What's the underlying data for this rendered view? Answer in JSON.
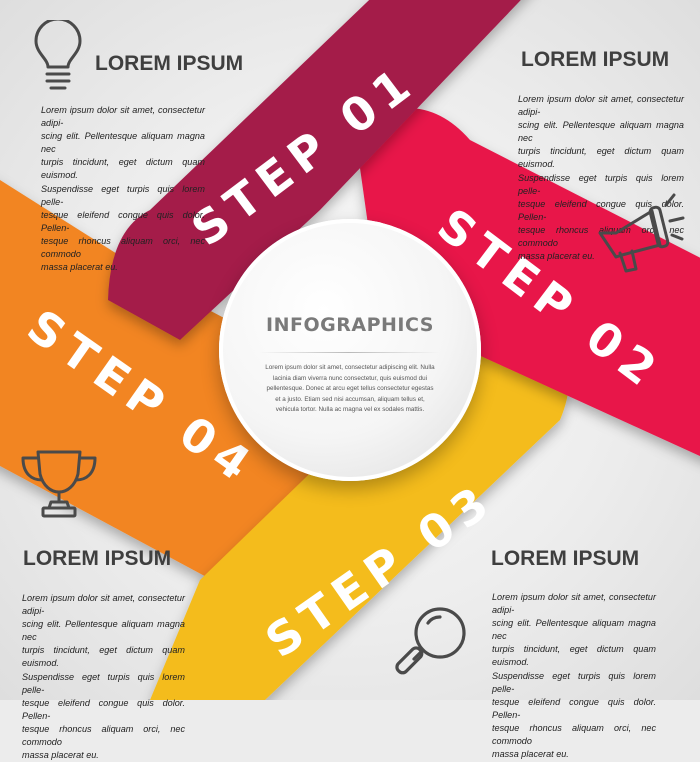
{
  "colors": {
    "step1": "#a41f4a",
    "step2": "#e8184a",
    "step3": "#f4bc1d",
    "step4": "#f28522",
    "text": "#3f3f3f",
    "icon": "#4a4a4a"
  },
  "steps": [
    {
      "label": "STEP 01",
      "icon": "lightbulb-icon"
    },
    {
      "label": "STEP 02",
      "icon": "megaphone-icon"
    },
    {
      "label": "STEP 03",
      "icon": "magnifier-icon"
    },
    {
      "label": "STEP 04",
      "icon": "trophy-icon"
    }
  ],
  "center": {
    "title": "INFOGRAPHICS",
    "text": "Lorem ipsum dolor sit amet, consectetur adipiscing elit. Nulla\nlacinia diam viverra nunc consectetur, quis euismod dui\npellentesque. Donec at arcu eget tellus consectetur egestas\net a justo. Etiam sed nisi accumsan, aliquam tellus et,\nvehicula tortor. Nulla ac magna vel ex sodales mattis."
  },
  "blocks": {
    "top_left": {
      "heading": "LOREM IPSUM",
      "text": "Lorem ipsum dolor sit amet, consectetur adipi-\nscing elit. Pellentesque aliquam magna nec\nturpis tincidunt, eget dictum quam euismod.\nSuspendisse eget turpis quis lorem pelle-\ntesque eleifend congue quis dolor. Pellen-\ntesque rhoncus aliquam orci, nec commodo\nmassa placerat eu."
    },
    "top_right": {
      "heading": "LOREM IPSUM",
      "text": "Lorem ipsum dolor sit amet, consectetur adipi-\nscing elit. Pellentesque aliquam magna nec\nturpis tincidunt, eget dictum quam euismod.\nSuspendisse eget turpis quis lorem pelle-\ntesque eleifend congue quis dolor. Pellen-\ntesque rhoncus aliquam orci, nec commodo\nmassa placerat eu."
    },
    "bottom_left": {
      "heading": "LOREM IPSUM",
      "text": "Lorem ipsum dolor sit amet, consectetur adipi-\nscing elit. Pellentesque aliquam magna nec\nturpis tincidunt, eget dictum quam euismod.\nSuspendisse eget turpis quis lorem pelle-\ntesque eleifend congue quis dolor. Pellen-\ntesque rhoncus aliquam orci, nec commodo\nmassa placerat eu."
    },
    "bottom_right": {
      "heading": "LOREM IPSUM",
      "text": "Lorem ipsum dolor sit amet, consectetur adipi-\nscing elit. Pellentesque aliquam magna nec\nturpis tincidunt, eget dictum quam euismod.\nSuspendisse eget turpis quis lorem pelle-\ntesque eleifend congue quis dolor. Pellen-\ntesque rhoncus aliquam orci, nec commodo\nmassa placerat eu."
    }
  }
}
